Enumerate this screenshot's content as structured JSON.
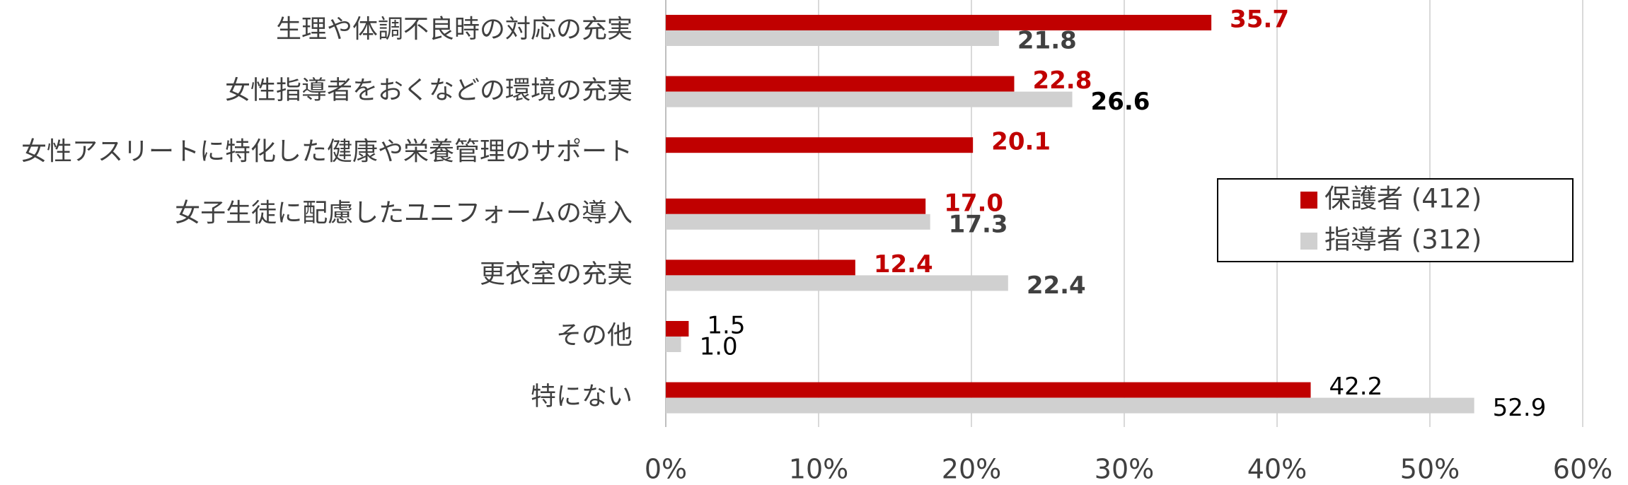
{
  "chart_data": {
    "type": "hbar",
    "categories": [
      "生理や体調不良時の対応の充実",
      "女性指導者をおくなどの環境の充実",
      "女性アスリートに特化した健康や栄養管理のサポート",
      "女子生徒に配慮したユニフォームの導入",
      "更衣室の充実",
      "その他",
      "特にない"
    ],
    "series": [
      {
        "name": "保護者 (412)",
        "color": "#c00000",
        "values": [
          35.7,
          22.8,
          20.1,
          17.0,
          12.4,
          1.5,
          42.2
        ],
        "value_labels": [
          "35.7",
          "22.8",
          "20.1",
          "17.0",
          "12.4",
          "1.5",
          "42.2"
        ]
      },
      {
        "name": "指導者 (312)",
        "color": "#d0d0d0",
        "values": [
          21.8,
          26.6,
          null,
          17.3,
          22.4,
          1.0,
          52.9
        ],
        "value_labels": [
          "21.8",
          "26.6",
          null,
          "17.3",
          "22.4",
          "1.0",
          "52.9"
        ]
      }
    ],
    "xlim": [
      0,
      60
    ],
    "xticks": [
      {
        "value": 0,
        "label": "0%"
      },
      {
        "value": 10,
        "label": "10%"
      },
      {
        "value": 20,
        "label": "20%"
      },
      {
        "value": 30,
        "label": "30%"
      },
      {
        "value": 40,
        "label": "40%"
      },
      {
        "value": 50,
        "label": "50%"
      },
      {
        "value": 60,
        "label": "60%"
      }
    ],
    "grid": true,
    "legend": "right"
  }
}
